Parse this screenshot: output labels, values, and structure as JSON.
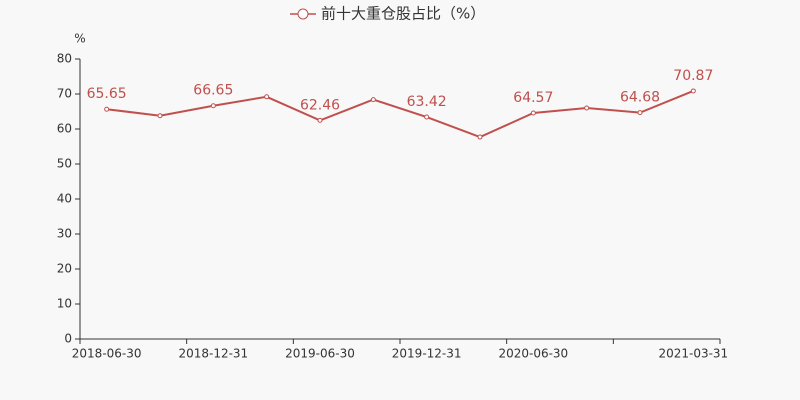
{
  "chart_data": {
    "type": "line",
    "y_label": "%",
    "categories": [
      "2018-06-30",
      null,
      "2018-12-31",
      null,
      "2019-06-30",
      null,
      "2019-12-31",
      null,
      "2020-06-30",
      null,
      null,
      "2021-03-31"
    ],
    "series": [
      {
        "name": "前十大重仓股占比（%）",
        "color": "#c0504d",
        "values": [
          65.65,
          63.8,
          66.65,
          69.2,
          62.46,
          68.4,
          63.42,
          57.7,
          64.57,
          66.0,
          64.68,
          70.87
        ],
        "value_labels": [
          "65.65",
          null,
          "66.65",
          null,
          "62.46",
          null,
          "63.42",
          null,
          "64.57",
          null,
          "64.68",
          "70.87"
        ]
      }
    ],
    "ylim": [
      0,
      80
    ],
    "yticks": [
      0,
      10,
      20,
      30,
      40,
      50,
      60,
      70,
      80
    ],
    "grid": false
  }
}
